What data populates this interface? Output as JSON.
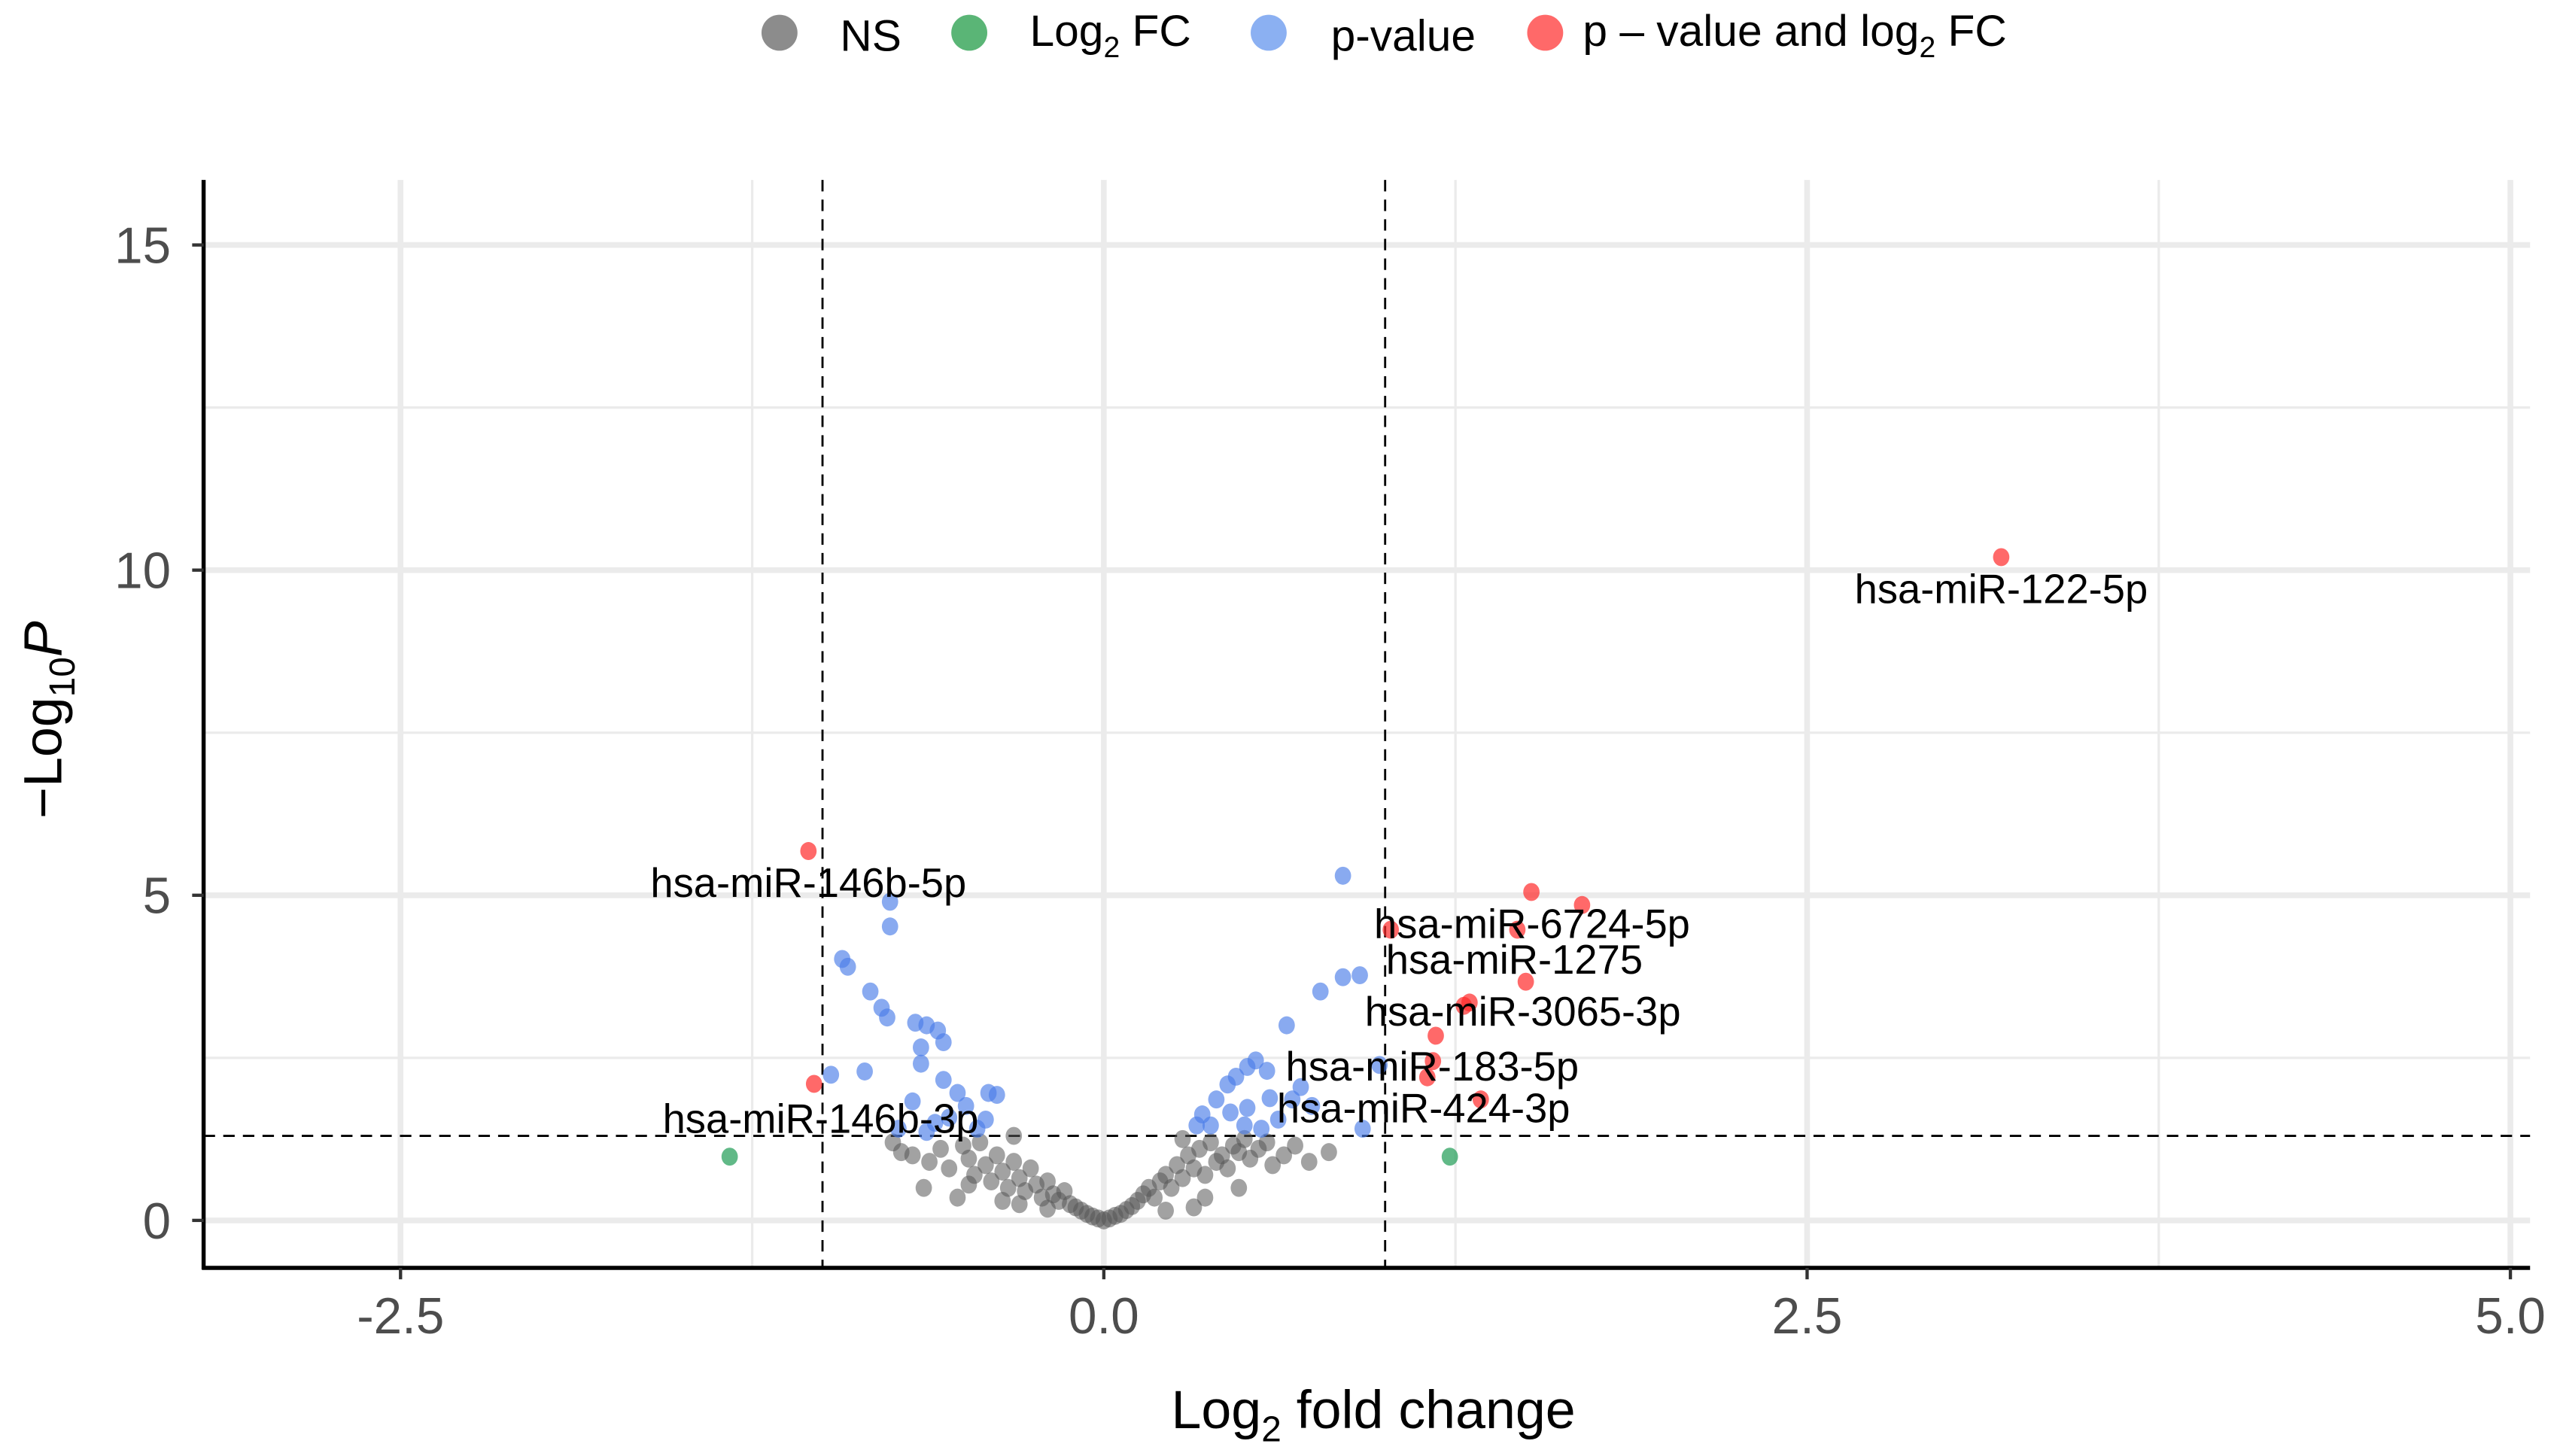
{
  "chart_data": {
    "type": "scatter",
    "title": "",
    "xlabel": {
      "main": "Log",
      "sub": "2",
      "rest": " fold change"
    },
    "ylabel": {
      "prefix": "−Log",
      "sub": "10",
      "italic": "P"
    },
    "xlim": [
      -3.2,
      5.07
    ],
    "ylim": [
      -0.73,
      16.0
    ],
    "xticks": [
      "-2.5",
      "0.0",
      "2.5",
      "5.0"
    ],
    "xtick_values": [
      -2.5,
      0.0,
      2.5,
      5.0
    ],
    "yticks": [
      "0",
      "5",
      "10",
      "15"
    ],
    "ytick_values": [
      0,
      5,
      10,
      15
    ],
    "grid": true,
    "thresholds": {
      "log2fc": [
        -1,
        1
      ],
      "neg_log10_p": 1.3
    },
    "legend_position": "top",
    "legend": [
      {
        "key": "ns",
        "label": "NS",
        "color": "#666666"
      },
      {
        "key": "fc",
        "label": "Log",
        "sub": "2",
        "rest": " FC",
        "color": "#31a354"
      },
      {
        "key": "p",
        "label": "p-value",
        "color": "#6495ed"
      },
      {
        "key": "both",
        "label": "p – value and log",
        "sub": "2",
        "rest": " FC",
        "color": "#ff4444"
      }
    ],
    "series": {
      "both": [
        [
          3.19,
          10.2
        ],
        [
          -1.05,
          5.68
        ],
        [
          -1.03,
          2.1
        ],
        [
          1.52,
          5.05
        ],
        [
          1.7,
          4.85
        ],
        [
          1.02,
          4.47
        ],
        [
          1.47,
          4.47
        ],
        [
          1.5,
          3.67
        ],
        [
          1.28,
          3.3
        ],
        [
          1.3,
          3.35
        ],
        [
          1.18,
          2.84
        ],
        [
          1.15,
          2.2
        ],
        [
          1.34,
          1.86
        ],
        [
          1.17,
          2.45
        ]
      ],
      "fc": [
        [
          -1.33,
          0.98
        ],
        [
          1.23,
          0.98
        ]
      ],
      "p": [
        [
          -0.76,
          4.9
        ],
        [
          -0.76,
          4.52
        ],
        [
          -0.93,
          4.02
        ],
        [
          -0.91,
          3.9
        ],
        [
          -0.83,
          3.52
        ],
        [
          -0.79,
          3.27
        ],
        [
          -0.77,
          3.12
        ],
        [
          -0.67,
          3.04
        ],
        [
          -0.63,
          3.0
        ],
        [
          -0.59,
          2.92
        ],
        [
          -0.65,
          2.66
        ],
        [
          -0.57,
          2.74
        ],
        [
          -0.65,
          2.41
        ],
        [
          -0.57,
          2.16
        ],
        [
          -0.41,
          1.96
        ],
        [
          -0.38,
          1.93
        ],
        [
          -0.97,
          2.24
        ],
        [
          -0.85,
          2.29
        ],
        [
          -0.68,
          1.83
        ],
        [
          -0.52,
          1.96
        ],
        [
          -0.55,
          1.58
        ],
        [
          -0.45,
          1.41
        ],
        [
          -0.63,
          1.36
        ],
        [
          -0.73,
          1.41
        ],
        [
          -0.49,
          1.76
        ],
        [
          -0.6,
          1.5
        ],
        [
          -0.42,
          1.55
        ],
        [
          0.85,
          5.3
        ],
        [
          0.91,
          3.77
        ],
        [
          0.85,
          3.74
        ],
        [
          0.77,
          3.52
        ],
        [
          0.65,
          3.0
        ],
        [
          0.54,
          2.46
        ],
        [
          0.51,
          2.36
        ],
        [
          0.47,
          2.21
        ],
        [
          0.44,
          2.09
        ],
        [
          0.4,
          1.86
        ],
        [
          0.35,
          1.63
        ],
        [
          0.33,
          1.46
        ],
        [
          0.45,
          1.66
        ],
        [
          0.51,
          1.73
        ],
        [
          0.59,
          1.88
        ],
        [
          0.67,
          1.86
        ],
        [
          0.74,
          1.76
        ],
        [
          0.98,
          2.39
        ],
        [
          0.56,
          1.41
        ],
        [
          0.5,
          1.46
        ],
        [
          0.38,
          1.46
        ],
        [
          0.92,
          1.41
        ],
        [
          0.62,
          1.55
        ],
        [
          0.7,
          2.05
        ],
        [
          0.58,
          2.3
        ]
      ],
      "ns": [
        [
          -0.75,
          1.2
        ],
        [
          -0.72,
          1.05
        ],
        [
          -0.64,
          0.5
        ],
        [
          -0.52,
          0.35
        ],
        [
          -0.68,
          1.0
        ],
        [
          -0.62,
          0.9
        ],
        [
          -0.58,
          1.1
        ],
        [
          -0.55,
          0.8
        ],
        [
          -0.5,
          1.15
        ],
        [
          -0.48,
          0.95
        ],
        [
          -0.46,
          0.7
        ],
        [
          -0.44,
          1.2
        ],
        [
          -0.42,
          0.85
        ],
        [
          -0.4,
          0.6
        ],
        [
          -0.38,
          1.0
        ],
        [
          -0.36,
          0.75
        ],
        [
          -0.34,
          0.5
        ],
        [
          -0.32,
          0.9
        ],
        [
          -0.3,
          0.65
        ],
        [
          -0.28,
          0.45
        ],
        [
          -0.26,
          0.8
        ],
        [
          -0.24,
          0.55
        ],
        [
          -0.22,
          0.35
        ],
        [
          -0.2,
          0.6
        ],
        [
          -0.18,
          0.4
        ],
        [
          -0.16,
          0.3
        ],
        [
          -0.14,
          0.45
        ],
        [
          -0.12,
          0.25
        ],
        [
          -0.1,
          0.2
        ],
        [
          -0.08,
          0.15
        ],
        [
          -0.06,
          0.1
        ],
        [
          -0.04,
          0.06
        ],
        [
          -0.02,
          0.03
        ],
        [
          0.0,
          0.0
        ],
        [
          0.02,
          0.03
        ],
        [
          0.04,
          0.07
        ],
        [
          0.06,
          0.1
        ],
        [
          0.08,
          0.16
        ],
        [
          0.1,
          0.22
        ],
        [
          0.12,
          0.3
        ],
        [
          0.14,
          0.4
        ],
        [
          0.16,
          0.5
        ],
        [
          0.18,
          0.35
        ],
        [
          0.2,
          0.6
        ],
        [
          0.22,
          0.7
        ],
        [
          0.24,
          0.5
        ],
        [
          0.26,
          0.85
        ],
        [
          0.28,
          0.65
        ],
        [
          0.3,
          1.0
        ],
        [
          0.32,
          0.8
        ],
        [
          0.34,
          1.1
        ],
        [
          0.36,
          0.7
        ],
        [
          0.38,
          1.2
        ],
        [
          0.4,
          0.9
        ],
        [
          0.42,
          1.0
        ],
        [
          0.44,
          0.8
        ],
        [
          0.46,
          1.15
        ],
        [
          0.48,
          1.05
        ],
        [
          0.5,
          1.25
        ],
        [
          0.52,
          0.95
        ],
        [
          0.55,
          1.1
        ],
        [
          0.58,
          1.2
        ],
        [
          0.6,
          0.85
        ],
        [
          0.64,
          1.0
        ],
        [
          0.68,
          1.15
        ],
        [
          0.73,
          0.9
        ],
        [
          0.8,
          1.05
        ],
        [
          0.32,
          0.2
        ],
        [
          -0.3,
          0.25
        ],
        [
          0.22,
          0.15
        ],
        [
          -0.2,
          0.18
        ],
        [
          -0.36,
          0.3
        ],
        [
          0.36,
          0.35
        ],
        [
          0.48,
          0.5
        ],
        [
          -0.48,
          0.55
        ],
        [
          -0.32,
          1.3
        ],
        [
          0.28,
          1.25
        ]
      ]
    },
    "labels": [
      {
        "text": "hsa-miR-122-5p",
        "x": 3.19,
        "y": 10.2
      },
      {
        "text": "hsa-miR-146b-5p",
        "x": -1.05,
        "y": 5.68
      },
      {
        "text": "hsa-miR-6724-5p",
        "x": 1.47,
        "y": 4.47
      },
      {
        "text": "hsa-miR-1275",
        "x": 1.5,
        "y": 3.67
      },
      {
        "text": "hsa-miR-3065-3p",
        "x": 1.28,
        "y": 3.3
      },
      {
        "text": "hsa-miR-183-5p",
        "x": 1.15,
        "y": 2.2
      },
      {
        "text": "hsa-miR-424-3p",
        "x": 1.34,
        "y": 1.86
      },
      {
        "text": "hsa-miR-146b-3p",
        "x": -1.03,
        "y": 2.1
      }
    ]
  }
}
